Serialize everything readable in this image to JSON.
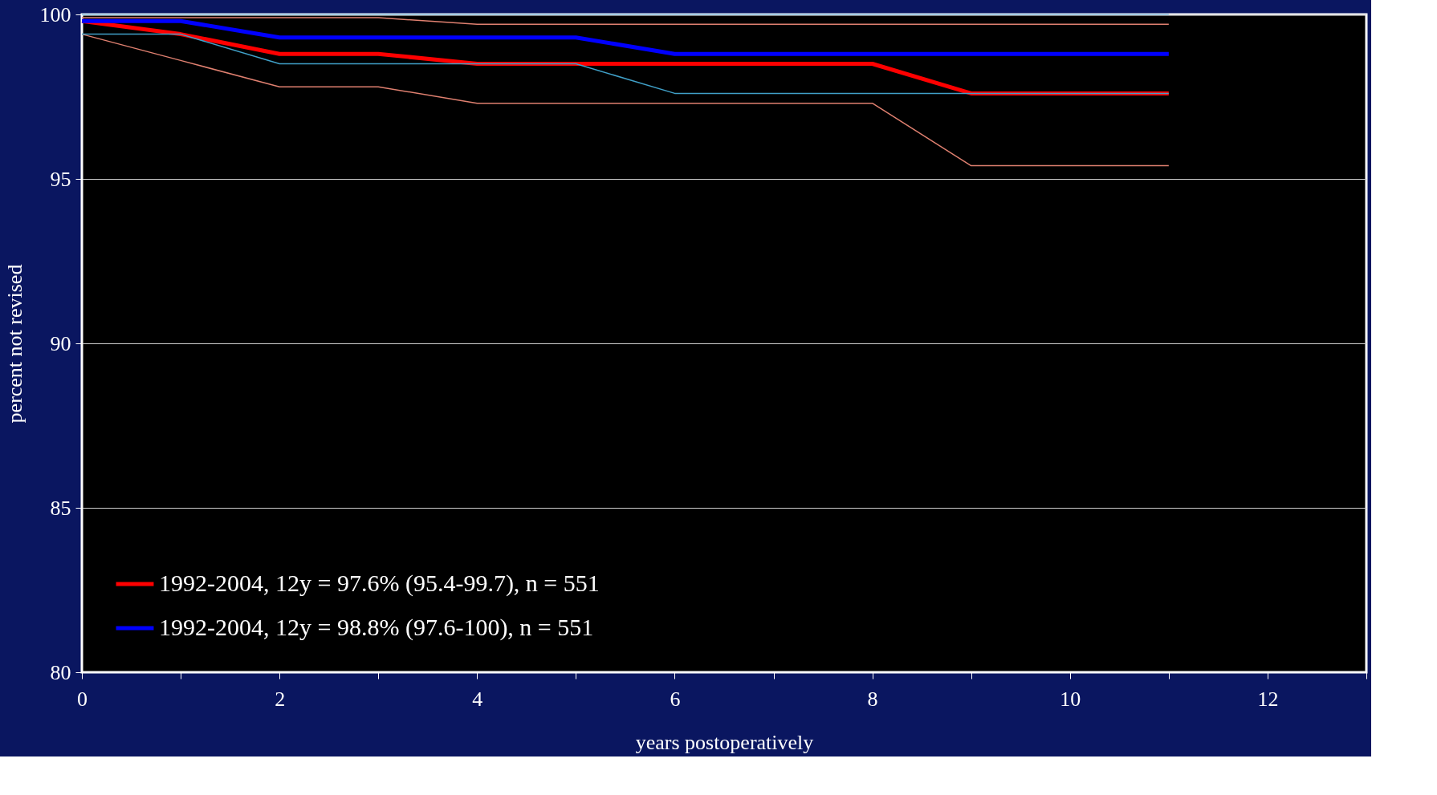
{
  "chart_data": {
    "type": "line",
    "xlabel": "years postoperatively",
    "ylabel": "percent not revised",
    "x": [
      0,
      1,
      2,
      3,
      4,
      5,
      6,
      7,
      8,
      9,
      10,
      11
    ],
    "xlim": [
      0,
      13
    ],
    "ylim": [
      80,
      100
    ],
    "xticks": [
      0,
      {
        "value": 1,
        "label": null
      },
      2,
      {
        "value": 3,
        "label": null
      },
      4,
      {
        "value": 5,
        "label": null
      },
      6,
      {
        "value": 7,
        "label": null
      },
      8,
      {
        "value": 9,
        "label": null
      },
      10,
      {
        "value": 11,
        "label": null
      },
      12,
      {
        "value": 13,
        "label": null
      }
    ],
    "yticks": [
      80,
      85,
      90,
      95,
      100
    ],
    "grid": "y",
    "legend": "bottom left",
    "marker": "none",
    "line_style": "solid",
    "series": [
      {
        "name": "1992-2004, 12y = 97.6%  (95.4-99.7), n = 551",
        "color": "#ff0000",
        "values": [
          99.8,
          99.4,
          98.8,
          98.8,
          98.5,
          98.5,
          98.5,
          98.5,
          98.5,
          97.6,
          97.6,
          97.6
        ]
      },
      {
        "name": "1992-2004, 12y = 98.8%  (97.6-100), n = 551",
        "color": "#0000ff",
        "values": [
          99.8,
          99.8,
          99.3,
          99.3,
          99.3,
          99.3,
          98.8,
          98.8,
          98.8,
          98.8,
          98.8,
          98.8
        ]
      },
      {
        "color": "#90c8e8",
        "values": [
          100,
          100,
          100,
          100,
          100,
          100,
          100,
          100,
          100,
          100,
          100,
          100
        ]
      },
      {
        "color": "#e08070",
        "values": [
          99.9,
          99.9,
          99.9,
          99.9,
          99.7,
          99.7,
          99.7,
          99.7,
          99.7,
          99.7,
          99.7,
          99.7
        ]
      },
      {
        "color": "#e08070",
        "values": [
          99.4,
          98.6,
          97.8,
          97.8,
          97.3,
          97.3,
          97.3,
          97.3,
          97.3,
          95.4,
          95.4,
          95.4
        ]
      },
      {
        "color": "#40a0c8",
        "values": [
          99.4,
          99.4,
          98.5,
          98.5,
          98.5,
          98.5,
          97.6,
          97.6,
          97.6,
          97.6,
          97.6,
          97.6
        ]
      }
    ]
  }
}
